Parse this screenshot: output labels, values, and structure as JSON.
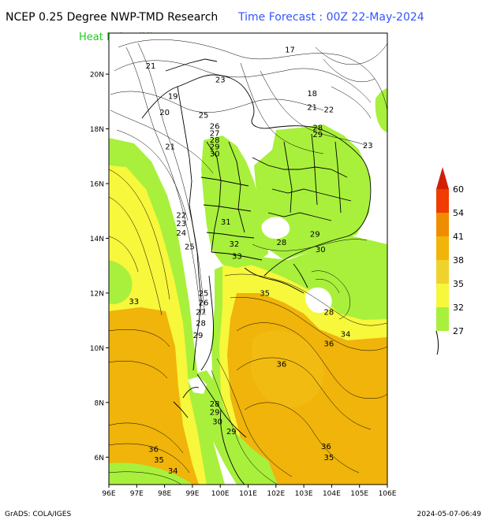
{
  "header": {
    "title": "NCEP 0.25 Degree NWP-TMD Research",
    "forecast": "Time Forecast : 00Z 22-May-2024",
    "variable": "Heat Index (H)"
  },
  "footer": {
    "credit": "GrADS: COLA/IGES",
    "timestamp": "2024-05-07-06:49"
  },
  "map": {
    "lat_labels": [
      "20N",
      "18N",
      "16N",
      "14N",
      "12N",
      "10N",
      "8N",
      "6N"
    ],
    "lon_labels": [
      "96E",
      "97E",
      "98E",
      "99E",
      "100E",
      "101E",
      "102E",
      "103E",
      "104E",
      "105E",
      "106E"
    ],
    "lat_range": [
      5,
      21.5
    ],
    "lon_range": [
      96,
      106
    ],
    "contour_labels": [
      {
        "text": "17",
        "lon": 102.5,
        "lat": 20.9
      },
      {
        "text": "21",
        "lon": 97.5,
        "lat": 20.3
      },
      {
        "text": "23",
        "lon": 100.0,
        "lat": 19.8
      },
      {
        "text": "19",
        "lon": 98.3,
        "lat": 19.2
      },
      {
        "text": "20",
        "lon": 98.0,
        "lat": 18.6
      },
      {
        "text": "25",
        "lon": 99.4,
        "lat": 18.5
      },
      {
        "text": "26",
        "lon": 99.8,
        "lat": 18.1
      },
      {
        "text": "27",
        "lon": 99.8,
        "lat": 17.85
      },
      {
        "text": "28",
        "lon": 99.8,
        "lat": 17.6
      },
      {
        "text": "29",
        "lon": 99.8,
        "lat": 17.35
      },
      {
        "text": "30",
        "lon": 99.8,
        "lat": 17.1
      },
      {
        "text": "21",
        "lon": 98.2,
        "lat": 17.35
      },
      {
        "text": "18",
        "lon": 103.3,
        "lat": 19.3
      },
      {
        "text": "21",
        "lon": 103.3,
        "lat": 18.8
      },
      {
        "text": "22",
        "lon": 103.9,
        "lat": 18.7
      },
      {
        "text": "28",
        "lon": 103.5,
        "lat": 18.05
      },
      {
        "text": "29",
        "lon": 103.5,
        "lat": 17.8
      },
      {
        "text": "23",
        "lon": 105.3,
        "lat": 17.4
      },
      {
        "text": "22",
        "lon": 98.6,
        "lat": 14.85
      },
      {
        "text": "23",
        "lon": 98.6,
        "lat": 14.55
      },
      {
        "text": "24",
        "lon": 98.6,
        "lat": 14.2
      },
      {
        "text": "25",
        "lon": 98.9,
        "lat": 13.7
      },
      {
        "text": "31",
        "lon": 100.2,
        "lat": 14.6
      },
      {
        "text": "32",
        "lon": 100.5,
        "lat": 13.8
      },
      {
        "text": "33",
        "lon": 100.6,
        "lat": 13.35
      },
      {
        "text": "28",
        "lon": 102.2,
        "lat": 13.85
      },
      {
        "text": "29",
        "lon": 103.4,
        "lat": 14.15
      },
      {
        "text": "30",
        "lon": 103.6,
        "lat": 13.6
      },
      {
        "text": "35",
        "lon": 101.6,
        "lat": 12.0
      },
      {
        "text": "33",
        "lon": 96.9,
        "lat": 11.7
      },
      {
        "text": "25",
        "lon": 99.4,
        "lat": 12.0
      },
      {
        "text": "26",
        "lon": 99.4,
        "lat": 11.65
      },
      {
        "text": "27",
        "lon": 99.3,
        "lat": 11.3
      },
      {
        "text": "28",
        "lon": 99.3,
        "lat": 10.9
      },
      {
        "text": "29",
        "lon": 99.2,
        "lat": 10.45
      },
      {
        "text": "28",
        "lon": 103.9,
        "lat": 11.3
      },
      {
        "text": "34",
        "lon": 104.5,
        "lat": 10.5
      },
      {
        "text": "36",
        "lon": 103.9,
        "lat": 10.15
      },
      {
        "text": "36",
        "lon": 102.2,
        "lat": 9.4
      },
      {
        "text": "28",
        "lon": 99.8,
        "lat": 7.95
      },
      {
        "text": "29",
        "lon": 99.8,
        "lat": 7.65
      },
      {
        "text": "30",
        "lon": 99.9,
        "lat": 7.3
      },
      {
        "text": "29",
        "lon": 100.4,
        "lat": 6.95
      },
      {
        "text": "36",
        "lon": 97.6,
        "lat": 6.3
      },
      {
        "text": "35",
        "lon": 97.8,
        "lat": 5.9
      },
      {
        "text": "34",
        "lon": 98.3,
        "lat": 5.5
      },
      {
        "text": "36",
        "lon": 103.8,
        "lat": 6.4
      },
      {
        "text": "35",
        "lon": 103.9,
        "lat": 6.0
      }
    ]
  },
  "legend": {
    "levels": [
      "27",
      "32",
      "35",
      "38",
      "41",
      "54",
      "60"
    ],
    "colors": [
      "#a8f03c",
      "#f7f73c",
      "#f0d22d",
      "#f0b40a",
      "#f08c00",
      "#f03c00",
      "#d21e00"
    ]
  }
}
